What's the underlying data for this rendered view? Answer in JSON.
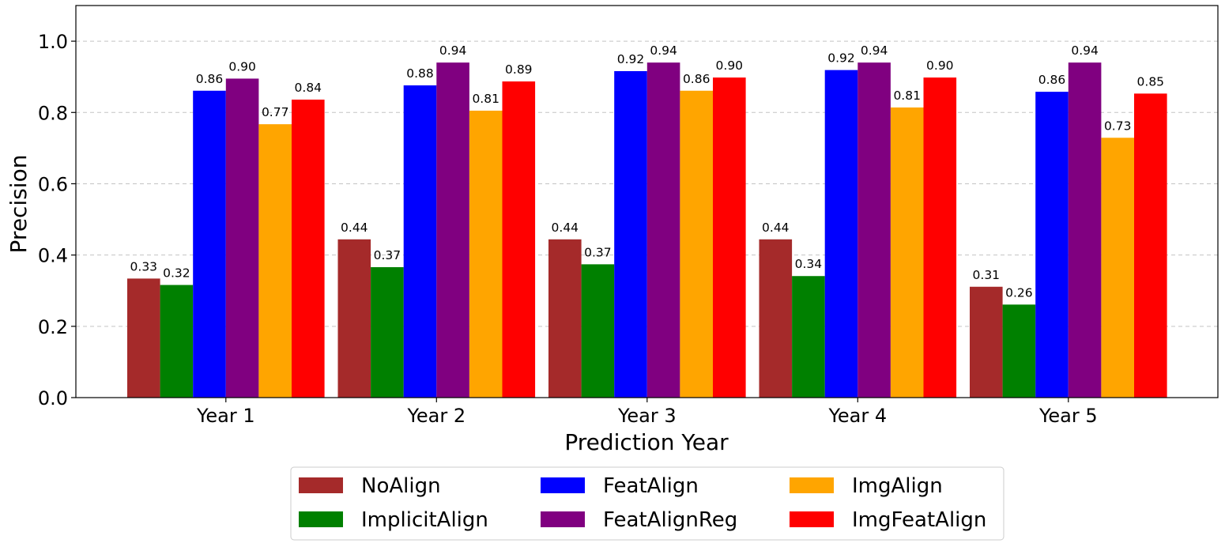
{
  "chart_data": {
    "type": "bar",
    "title": "",
    "xlabel": "Prediction Year",
    "ylabel": "Precision",
    "ylim": [
      0,
      1.1
    ],
    "yticks": [
      "0.0",
      "0.2",
      "0.4",
      "0.6",
      "0.8",
      "1.0"
    ],
    "ytick_values": [
      0,
      0.2,
      0.4,
      0.6,
      0.8,
      1.0
    ],
    "grid": true,
    "legend_position": "bottom-center",
    "categories": [
      "Year 1",
      "Year 2",
      "Year 3",
      "Year 4",
      "Year 5"
    ],
    "series": [
      {
        "name": "NoAlign",
        "color": "#a52a2a",
        "values": [
          0.334,
          0.444,
          0.444,
          0.444,
          0.311
        ],
        "labels": [
          "0.33",
          "0.44",
          "0.44",
          "0.44",
          "0.31"
        ]
      },
      {
        "name": "ImplicitAlign",
        "color": "#008000",
        "values": [
          0.316,
          0.366,
          0.374,
          0.341,
          0.261
        ],
        "labels": [
          "0.32",
          "0.37",
          "0.37",
          "0.34",
          "0.26"
        ]
      },
      {
        "name": "FeatAlign",
        "color": "#0000ff",
        "values": [
          0.861,
          0.876,
          0.916,
          0.919,
          0.858
        ],
        "labels": [
          "0.86",
          "0.88",
          "0.92",
          "0.92",
          "0.86"
        ]
      },
      {
        "name": "FeatAlignReg",
        "color": "#800080",
        "values": [
          0.895,
          0.94,
          0.94,
          0.94,
          0.94
        ],
        "labels": [
          "0.90",
          "0.94",
          "0.94",
          "0.94",
          "0.94"
        ]
      },
      {
        "name": "ImgAlign",
        "color": "#ffa500",
        "values": [
          0.767,
          0.805,
          0.861,
          0.814,
          0.729
        ],
        "labels": [
          "0.77",
          "0.81",
          "0.86",
          "0.81",
          "0.73"
        ]
      },
      {
        "name": "ImgFeatAlign",
        "color": "#ff0000",
        "values": [
          0.836,
          0.887,
          0.898,
          0.898,
          0.853
        ],
        "labels": [
          "0.84",
          "0.89",
          "0.90",
          "0.90",
          "0.85"
        ]
      }
    ]
  }
}
